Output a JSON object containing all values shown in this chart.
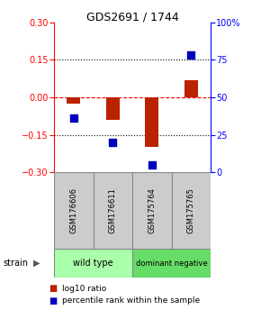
{
  "title": "GDS2691 / 1744",
  "samples": [
    "GSM176606",
    "GSM176611",
    "GSM175764",
    "GSM175765"
  ],
  "log10_ratio": [
    -0.025,
    -0.09,
    -0.2,
    0.07
  ],
  "percentile_rank": [
    36,
    20,
    5,
    78
  ],
  "bar_color": "#bb2200",
  "dot_color": "#0000bb",
  "ylim_left": [
    -0.3,
    0.3
  ],
  "ylim_right": [
    0,
    100
  ],
  "yticks_left": [
    -0.3,
    -0.15,
    0,
    0.15,
    0.3
  ],
  "yticks_right": [
    0,
    25,
    50,
    75,
    100
  ],
  "ytick_labels_right": [
    "0",
    "25",
    "50",
    "75",
    "100%"
  ],
  "hlines": [
    -0.15,
    0.0,
    0.15
  ],
  "hline_colors": [
    "black",
    "red",
    "black"
  ],
  "hline_styles": [
    "dotted",
    "dashed",
    "dotted"
  ],
  "groups": [
    {
      "label": "wild type",
      "samples": [
        0,
        1
      ],
      "color": "#aaffaa"
    },
    {
      "label": "dominant negative",
      "samples": [
        2,
        3
      ],
      "color": "#66dd66"
    }
  ],
  "strain_label": "strain",
  "legend_items": [
    {
      "color": "#bb2200",
      "label": "log10 ratio"
    },
    {
      "color": "#0000bb",
      "label": "percentile rank within the sample"
    }
  ],
  "bar_width": 0.35,
  "dot_size": 30,
  "gray_box_color": "#cccccc",
  "gray_box_edge": "#aaaaaa"
}
